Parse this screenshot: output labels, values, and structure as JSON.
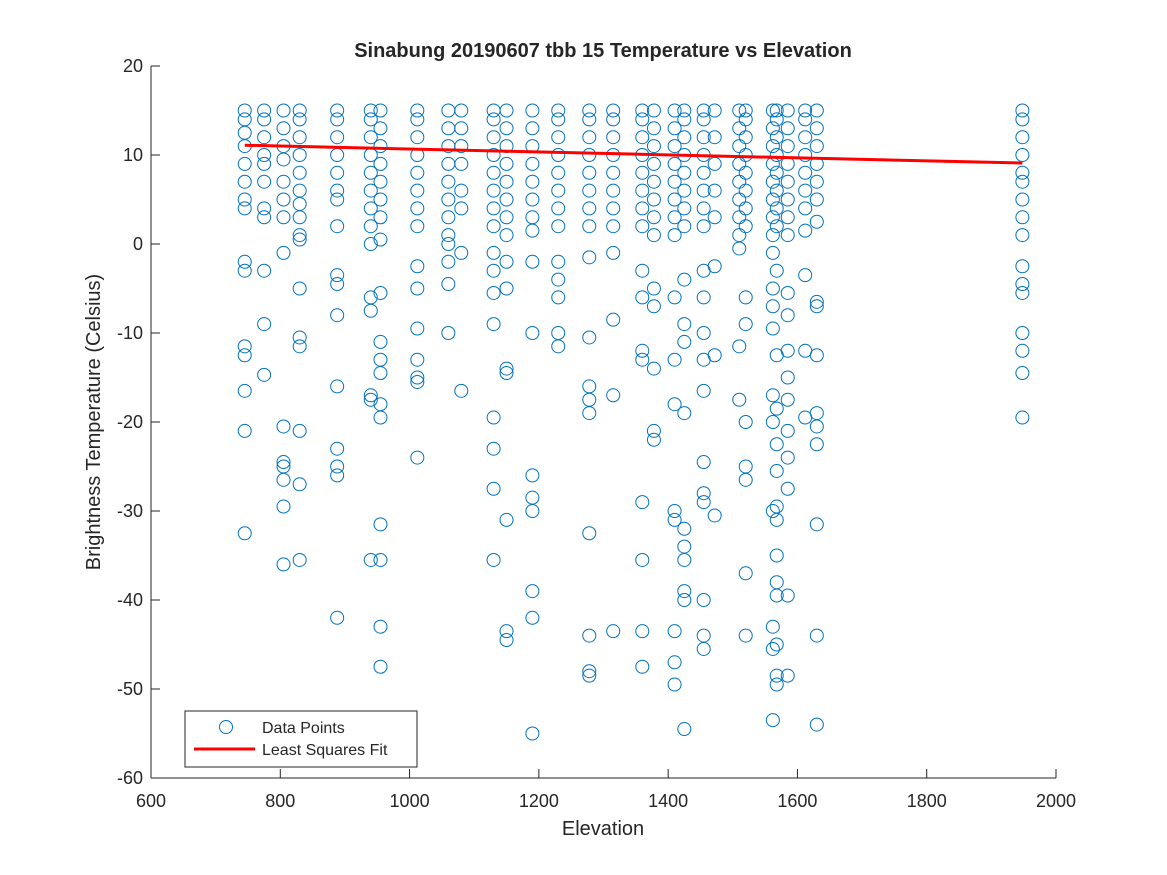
{
  "chart_data": {
    "type": "scatter",
    "title": "Sinabung 20190607 tbb 15 Temperature vs Elevation",
    "xlabel": "Elevation",
    "ylabel": "Brightness Temperature (Celsius)",
    "xlim": [
      600,
      2000
    ],
    "ylim": [
      -60,
      20
    ],
    "xticks": [
      600,
      800,
      1000,
      1200,
      1400,
      1600,
      1800,
      2000
    ],
    "yticks": [
      -60,
      -50,
      -40,
      -30,
      -20,
      -10,
      0,
      10,
      20
    ],
    "xtick_labels": [
      "600",
      "800",
      "1000",
      "1200",
      "1400",
      "1600",
      "1800",
      "2000"
    ],
    "ytick_labels": [
      "-60",
      "-50",
      "-40",
      "-30",
      "-20",
      "-10",
      "0",
      "10",
      "20"
    ],
    "grid": false,
    "legend_position": "bottom-left",
    "series": [
      {
        "name": "Data Points",
        "marker": "open-circle",
        "color": "#0072BD",
        "columns": [
          {
            "x": 745,
            "y": [
              4,
              5,
              7,
              9,
              11,
              12.5,
              14,
              15,
              -2,
              -3,
              -11.5,
              -12.5,
              -16.5,
              -21,
              -32.5
            ]
          },
          {
            "x": 775,
            "y": [
              3,
              4,
              7,
              9,
              10,
              12,
              14,
              15,
              -3,
              -9,
              -14.7
            ]
          },
          {
            "x": 805,
            "y": [
              3,
              5,
              7,
              9.5,
              11,
              13,
              15,
              -1,
              -20.5,
              -24.5,
              -25,
              -26.5,
              -29.5,
              -36
            ]
          },
          {
            "x": 830,
            "y": [
              3,
              4.5,
              6,
              8,
              10,
              12,
              14,
              15,
              0.5,
              1,
              -5,
              -10.5,
              -11.5,
              -21,
              -27,
              -35.5
            ]
          },
          {
            "x": 888,
            "y": [
              2,
              5,
              6,
              8,
              10,
              12,
              14,
              15,
              -3.5,
              -4.5,
              -8,
              -16,
              -23,
              -25,
              -26,
              -42
            ]
          },
          {
            "x": 940,
            "y": [
              2,
              4,
              6,
              8,
              10,
              12,
              14,
              15,
              0,
              -6,
              -7.5,
              -17,
              -17.5,
              -35.5
            ]
          },
          {
            "x": 955,
            "y": [
              3,
              5,
              7,
              9,
              11,
              13,
              15,
              0.5,
              -5.5,
              -11,
              -13,
              -14.5,
              -18,
              -19.5,
              -31.5,
              -35.5,
              -43,
              -47.5
            ]
          },
          {
            "x": 1012,
            "y": [
              2,
              4,
              6,
              8,
              10,
              12,
              14,
              15,
              -2.5,
              -5,
              -9.5,
              -13,
              -15,
              -15.5,
              -24
            ]
          },
          {
            "x": 1060,
            "y": [
              3,
              5,
              7,
              9,
              11,
              13,
              15,
              1,
              0,
              -2,
              -4.5,
              -10
            ]
          },
          {
            "x": 1080,
            "y": [
              4,
              6,
              9,
              11,
              13,
              15,
              -1,
              -16.5
            ]
          },
          {
            "x": 1130,
            "y": [
              2,
              4,
              6,
              8,
              10,
              12,
              14,
              15,
              -1,
              -3,
              -5.5,
              -9,
              -19.5,
              -23,
              -27.5,
              -35.5
            ]
          },
          {
            "x": 1150,
            "y": [
              1,
              3,
              5,
              7,
              9,
              11,
              13,
              15,
              -2,
              -5,
              -14,
              -14.5,
              -31,
              -43.5,
              -44.5
            ]
          },
          {
            "x": 1190,
            "y": [
              1.5,
              3,
              5,
              7,
              9,
              11,
              13,
              15,
              -2,
              -10,
              -26,
              -28.5,
              -30,
              -39,
              -42,
              -55
            ]
          },
          {
            "x": 1230,
            "y": [
              2,
              4,
              6,
              8,
              10,
              12,
              14,
              15,
              -2,
              -4,
              -6,
              -10,
              -11.5
            ]
          },
          {
            "x": 1278,
            "y": [
              2,
              4,
              6,
              8,
              10,
              12,
              14,
              15,
              -1.5,
              -10.5,
              -16,
              -17.5,
              -19,
              -32.5,
              -44,
              -48,
              -48.5
            ]
          },
          {
            "x": 1315,
            "y": [
              2,
              4,
              6,
              8,
              10,
              12,
              14,
              15,
              -1,
              -8.5,
              -17,
              -43.5
            ]
          },
          {
            "x": 1360,
            "y": [
              2,
              4,
              6,
              8,
              10,
              12,
              14,
              15,
              -3,
              -6,
              -12,
              -13,
              -29,
              -35.5,
              -43.5,
              -47.5
            ]
          },
          {
            "x": 1378,
            "y": [
              1,
              3,
              5,
              7,
              9,
              11,
              13,
              15,
              -5,
              -7,
              -14,
              -21,
              -22
            ]
          },
          {
            "x": 1410,
            "y": [
              1,
              3,
              5,
              7,
              9,
              11,
              13,
              15,
              -6,
              -13,
              -18,
              -30,
              -31,
              -43.5,
              -47,
              -49.5
            ]
          },
          {
            "x": 1425,
            "y": [
              2,
              4,
              6,
              8,
              10,
              12,
              14,
              15,
              -4,
              -9,
              -11,
              -19,
              -32,
              -34,
              -35.5,
              -39,
              -40,
              -54.5
            ]
          },
          {
            "x": 1455,
            "y": [
              2,
              4,
              6,
              8,
              10,
              12,
              14,
              15,
              -3,
              -6,
              -10,
              -13,
              -16.5,
              -24.5,
              -28,
              -29,
              -40,
              -44,
              -45.5
            ]
          },
          {
            "x": 1472,
            "y": [
              3,
              6,
              9,
              12,
              15,
              -2.5,
              -12.5,
              -30.5
            ]
          },
          {
            "x": 1510,
            "y": [
              1,
              3,
              5,
              7,
              9,
              11,
              13,
              15,
              -0.5,
              -11.5,
              -17.5
            ]
          },
          {
            "x": 1520,
            "y": [
              2,
              4,
              6,
              8,
              10,
              12,
              14,
              15,
              -6,
              -9,
              -20,
              -25,
              -26.5,
              -37,
              -44
            ]
          },
          {
            "x": 1562,
            "y": [
              1,
              3,
              5,
              7,
              9,
              11,
              13,
              15,
              -1,
              -5,
              -7,
              -9.5,
              -17,
              -20,
              -30,
              -43,
              -45.5,
              -53.5
            ]
          },
          {
            "x": 1568,
            "y": [
              2,
              4,
              6,
              8,
              10,
              12,
              14,
              15,
              -3,
              -12.5,
              -18.5,
              -22.5,
              -25.5,
              -29.5,
              -31,
              -35,
              -38,
              -39.5,
              -45,
              -48.5,
              -49.5
            ]
          },
          {
            "x": 1585,
            "y": [
              1,
              3,
              5,
              7,
              9,
              11,
              13,
              15,
              -5.5,
              -8,
              -12,
              -15,
              -17.5,
              -21,
              -24,
              -27.5,
              -39.5,
              -48.5
            ]
          },
          {
            "x": 1612,
            "y": [
              1.5,
              4,
              6,
              8,
              10,
              12,
              14,
              15,
              -3.5,
              -12,
              -19.5
            ]
          },
          {
            "x": 1630,
            "y": [
              2.5,
              5,
              7,
              9,
              11,
              13,
              15,
              -6.5,
              -7,
              -12.5,
              -19,
              -20.5,
              -22.5,
              -31.5,
              -44,
              -54
            ]
          },
          {
            "x": 1948,
            "y": [
              5,
              7,
              8,
              10,
              12,
              14,
              15,
              1,
              3,
              -2.5,
              -4.5,
              -5.5,
              -10,
              -12,
              -14.5,
              -19.5
            ]
          }
        ]
      },
      {
        "name": "Least Squares Fit",
        "type": "line",
        "color": "#FF0000",
        "x": [
          745,
          1948
        ],
        "y": [
          11.1,
          9.1
        ]
      }
    ]
  }
}
